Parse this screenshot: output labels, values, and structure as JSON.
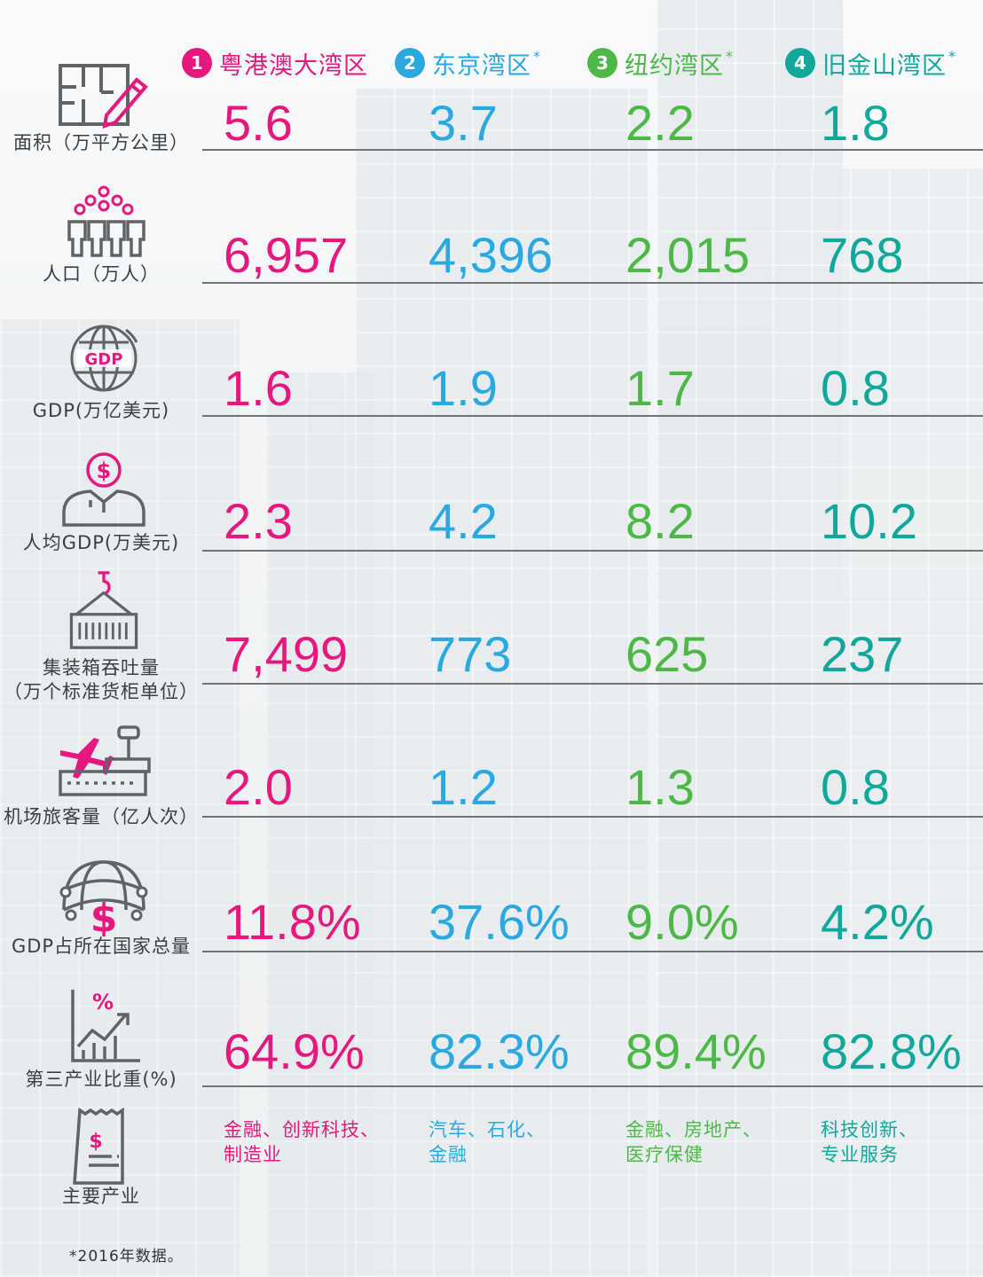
{
  "regions": [
    {
      "num": "1",
      "name": "粤港澳大湾区",
      "star": "",
      "color": "#e6187e"
    },
    {
      "num": "2",
      "name": "东京湾区",
      "star": "*",
      "color": "#2aa9e0"
    },
    {
      "num": "3",
      "name": "纽约湾区",
      "star": "*",
      "color": "#4db848"
    },
    {
      "num": "4",
      "name": "旧金山湾区",
      "star": "*",
      "color": "#11a89c"
    }
  ],
  "rows": [
    {
      "icon": "floor-plan-icon",
      "label": [
        "面积（万平方公里）"
      ],
      "values": [
        "5.6",
        "3.7",
        "2.2",
        "1.8"
      ]
    },
    {
      "icon": "people-icon",
      "label": [
        "人口（万人）"
      ],
      "values": [
        "6,957",
        "4,396",
        "2,015",
        "768"
      ]
    },
    {
      "icon": "gdp-globe-icon",
      "label": [
        "GDP(万亿美元)"
      ],
      "values": [
        "1.6",
        "1.9",
        "1.7",
        "0.8"
      ]
    },
    {
      "icon": "person-dollar-icon",
      "label": [
        "人均GDP(万美元)"
      ],
      "values": [
        "2.3",
        "4.2",
        "8.2",
        "10.2"
      ]
    },
    {
      "icon": "container-crane-icon",
      "label": [
        "集装箱吞吐量",
        "（万个标准货柜单位）"
      ],
      "values": [
        "7,499",
        "773",
        "625",
        "237"
      ]
    },
    {
      "icon": "airport-icon",
      "label": [
        "机场旅客量（亿人次）"
      ],
      "values": [
        "2.0",
        "1.2",
        "1.3",
        "0.8"
      ]
    },
    {
      "icon": "globe-dollar-icon",
      "label": [
        "GDP占所在国家总量"
      ],
      "values": [
        "11.8%",
        "37.6%",
        "9.0%",
        "4.2%"
      ]
    },
    {
      "icon": "percent-growth-chart-icon",
      "label": [
        "第三产业比重(%)"
      ],
      "values": [
        "64.9%",
        "82.3%",
        "89.4%",
        "82.8%"
      ]
    }
  ],
  "industries": {
    "label": "主要产业",
    "icon": "receipt-dollar-icon",
    "items": [
      [
        "金融、创新科技、",
        "制造业"
      ],
      [
        "汽车、石化、",
        "金融"
      ],
      [
        "金融、房地产、",
        "医疗保健"
      ],
      [
        "科技创新、",
        "专业服务"
      ]
    ]
  },
  "footnote": "*2016年数据。"
}
